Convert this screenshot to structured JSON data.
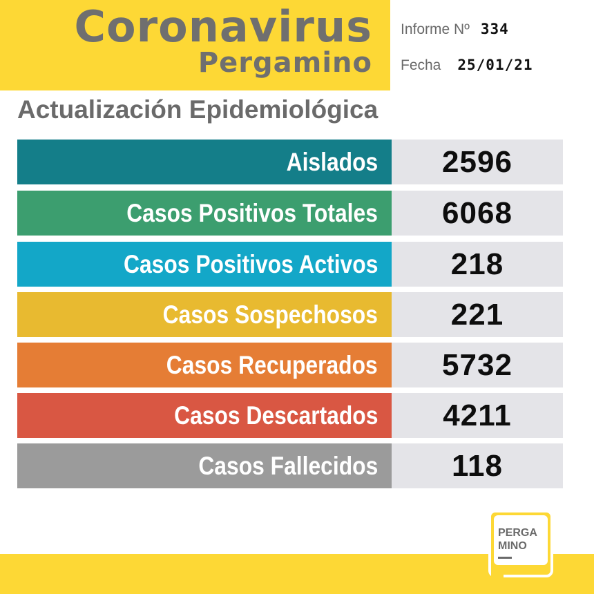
{
  "header": {
    "title": "Coronavirus",
    "city": "Pergamino",
    "report_label": "Informe Nº",
    "report_number": "334",
    "date_label": "Fecha",
    "date_value": "25/01/21"
  },
  "subtitle": "Actualización Epidemiológica",
  "rows": [
    {
      "label": "Aislados",
      "value": "2596",
      "color": "#147e89"
    },
    {
      "label": "Casos Positivos Totales",
      "value": "6068",
      "color": "#3c9e6f"
    },
    {
      "label": "Casos Positivos Activos",
      "value": "218",
      "color": "#13a7c8"
    },
    {
      "label": "Casos Sospechosos",
      "value": "221",
      "color": "#e8ba30"
    },
    {
      "label": "Casos Recuperados",
      "value": "5732",
      "color": "#e57d35"
    },
    {
      "label": "Casos Descartados",
      "value": "4211",
      "color": "#d95743"
    },
    {
      "label": "Casos Fallecidos",
      "value": "118",
      "color": "#9b9b9b"
    }
  ],
  "logo": {
    "line1": "PERGA",
    "line2": "MINO"
  },
  "colors": {
    "accent_yellow": "#fdd835",
    "value_bg": "#e4e4e8",
    "title_gray": "#6f6f6f"
  }
}
